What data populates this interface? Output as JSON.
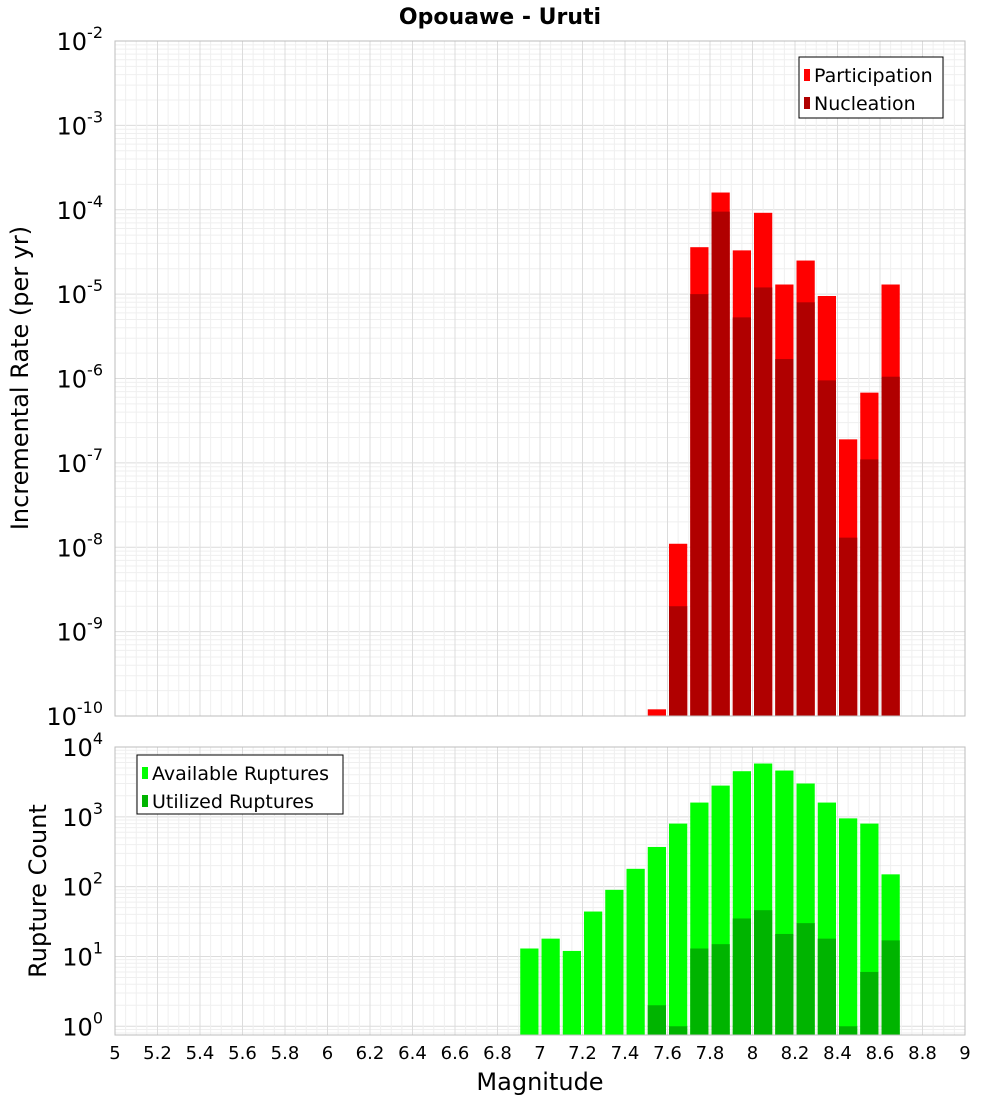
{
  "title": "Opouawe - Uruti",
  "colors": {
    "participation": "#ff0000",
    "nucleation": "#b00000",
    "available": "#00ff00",
    "utilized": "#00b400",
    "grid_major": "#dcdcdc",
    "grid_minor": "#efefef"
  },
  "chart_data": [
    {
      "type": "bar",
      "title": "Opouawe - Uruti",
      "ylabel": "Incremental Rate (per yr)",
      "y_scale": "log",
      "ylim": [
        1e-10,
        0.01
      ],
      "y_ticks": [
        {
          "base": "10",
          "exp": "-10"
        },
        {
          "base": "10",
          "exp": "-9"
        },
        {
          "base": "10",
          "exp": "-8"
        },
        {
          "base": "10",
          "exp": "-7"
        },
        {
          "base": "10",
          "exp": "-6"
        },
        {
          "base": "10",
          "exp": "-5"
        },
        {
          "base": "10",
          "exp": "-4"
        },
        {
          "base": "10",
          "exp": "-3"
        },
        {
          "base": "10",
          "exp": "-2"
        }
      ],
      "legend_position": "top-right",
      "x": [
        7.55,
        7.65,
        7.75,
        7.85,
        7.95,
        8.05,
        8.15,
        8.25,
        8.35,
        8.45,
        8.55,
        8.65
      ],
      "series": [
        {
          "name": "Participation",
          "values": [
            1.2e-10,
            1.1e-08,
            3.6e-05,
            0.00016,
            3.3e-05,
            9.2e-05,
            1.3e-05,
            2.5e-05,
            9.5e-06,
            1.9e-07,
            6.8e-07,
            1.3e-05
          ]
        },
        {
          "name": "Nucleation",
          "values": [
            null,
            2e-09,
            1e-05,
            9.5e-05,
            5.3e-06,
            1.2e-05,
            1.7e-06,
            8e-06,
            9.5e-07,
            1.3e-08,
            1.1e-07,
            1.05e-06
          ]
        }
      ]
    },
    {
      "type": "bar",
      "xlabel": "Magnitude",
      "ylabel": "Rupture Count",
      "y_scale": "log",
      "ylim": [
        0.75,
        10000
      ],
      "xlim": [
        5,
        9
      ],
      "y_ticks": [
        {
          "base": "10",
          "exp": "0"
        },
        {
          "base": "10",
          "exp": "1"
        },
        {
          "base": "10",
          "exp": "2"
        },
        {
          "base": "10",
          "exp": "3"
        },
        {
          "base": "10",
          "exp": "4"
        }
      ],
      "x_ticks": [
        "5",
        "5.2",
        "5.4",
        "5.6",
        "5.8",
        "6",
        "6.2",
        "6.4",
        "6.6",
        "6.8",
        "7",
        "7.2",
        "7.4",
        "7.6",
        "7.8",
        "8",
        "8.2",
        "8.4",
        "8.6",
        "8.8",
        "9"
      ],
      "legend_position": "top-left",
      "x": [
        6.95,
        7.05,
        7.15,
        7.25,
        7.35,
        7.45,
        7.55,
        7.65,
        7.75,
        7.85,
        7.95,
        8.05,
        8.15,
        8.25,
        8.35,
        8.45,
        8.55,
        8.65
      ],
      "series": [
        {
          "name": "Available Ruptures",
          "values": [
            13,
            18,
            12,
            44,
            90,
            180,
            370,
            800,
            1600,
            2800,
            4500,
            5800,
            4600,
            3000,
            1600,
            950,
            800,
            150
          ]
        },
        {
          "name": "Utilized Ruptures",
          "values": [
            null,
            null,
            null,
            null,
            null,
            null,
            2,
            1,
            13,
            15,
            35,
            46,
            21,
            30,
            18,
            1,
            6,
            17
          ]
        }
      ]
    }
  ]
}
